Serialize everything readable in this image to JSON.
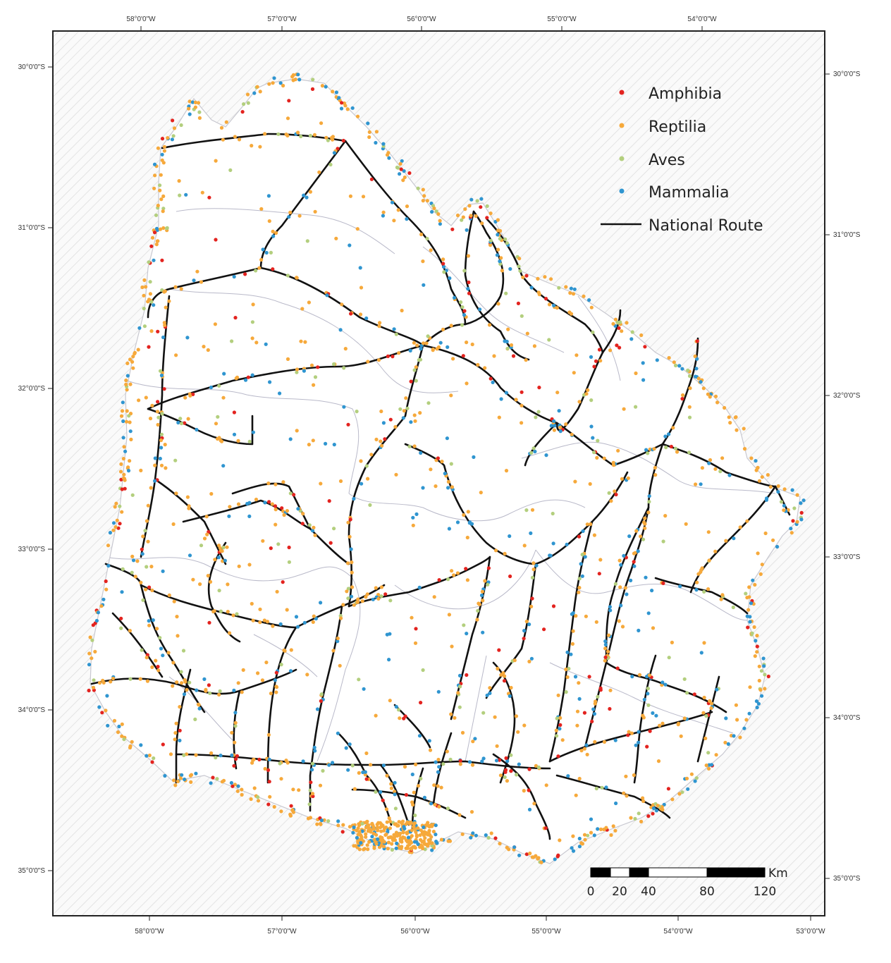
{
  "map": {
    "top_ticks": [
      "58°0'0\"W",
      "57°0'0\"W",
      "56°0'0\"W",
      "55°0'0\"W",
      "54°0'0\"W"
    ],
    "bottom_ticks": [
      "58°0'0\"W",
      "57°0'0\"W",
      "56°0'0\"W",
      "55°0'0\"W",
      "54°0'0\"W",
      "53°0'0\"W"
    ],
    "left_ticks": [
      "30°0'0\"S",
      "31°0'0\"S",
      "32°0'0\"S",
      "33°0'0\"S",
      "34°0'0\"S",
      "35°0'0\"S"
    ],
    "right_ticks": [
      "30°0'0\"S",
      "31°0'0\"S",
      "32°0'0\"S",
      "33°0'0\"S",
      "34°0'0\"S",
      "35°0'0\"S"
    ]
  },
  "legend": {
    "items": [
      {
        "label": "Amphibia",
        "color": "#e3231f",
        "symbol": "dot"
      },
      {
        "label": "Reptilia",
        "color": "#f6a93b",
        "symbol": "dot"
      },
      {
        "label": "Aves",
        "color": "#b3cf7e",
        "symbol": "dot"
      },
      {
        "label": "Mammalia",
        "color": "#2f95d0",
        "symbol": "dot"
      },
      {
        "label": "National Route",
        "color": "#111111",
        "symbol": "line"
      }
    ]
  },
  "scalebar": {
    "unit": "Km",
    "labels": [
      "0",
      "20",
      "40",
      "80",
      "120"
    ]
  },
  "colors": {
    "land": "#ffffff",
    "hatch": "#d9d9d9",
    "border": "#b8b8c8",
    "frame": "#222222"
  }
}
